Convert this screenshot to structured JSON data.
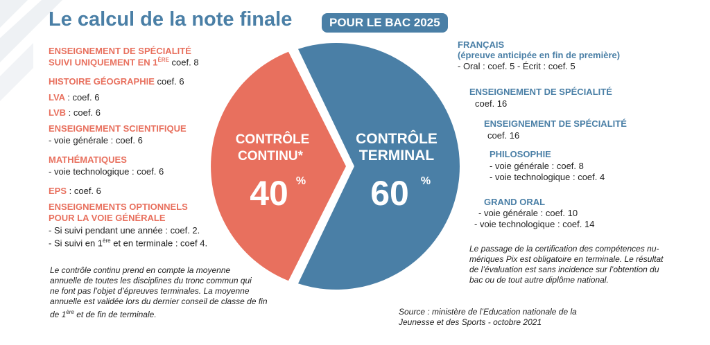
{
  "header": {
    "title": "Le calcul de la note finale",
    "badge": "POUR LE BAC 2025"
  },
  "colors": {
    "controle_continu": "#e8705e",
    "controle_terminal": "#4a7fa6"
  },
  "chart_data": {
    "type": "pie",
    "slices": [
      {
        "label_line1": "CONTRÔLE",
        "label_line2": "CONTINU*",
        "value": 40,
        "value_label": "40",
        "unit": "%",
        "color": "#e8705e"
      },
      {
        "label_line1": "CONTRÔLE",
        "label_line2": "TERMINAL",
        "value": 60,
        "value_label": "60",
        "unit": "%",
        "color": "#4a7fa6"
      }
    ]
  },
  "left": {
    "specialite_l1": "ENSEIGNEMENT DE SPÉCIALITÉ",
    "specialite_l2": "SUIVI UNIQUEMENT EN 1",
    "specialite_sup": "ÈRE",
    "specialite_coef": "coef. 8",
    "histgeo": "HISTOIRE GÉOGRAPHIE",
    "histgeo_coef": "coef. 6",
    "lva": "LVA",
    "lva_coef": ": coef. 6",
    "lvb": "LVB",
    "lvb_coef": ": coef. 6",
    "sci": "ENSEIGNEMENT SCIENTIFIQUE",
    "sci_detail": "- voie générale : coef. 6",
    "math": "MATHÉMATIQUES",
    "math_detail": "- voie technologique : coef. 6",
    "eps": "EPS",
    "eps_coef": ": coef. 6",
    "opt_l1": "ENSEIGNEMENTS OPTIONNELS",
    "opt_l2": "POUR LA VOIE GÉNÉRALE",
    "opt_d1": "- Si suivi pendant une année : coef. 2.",
    "opt_d2a": "- Si suivi en 1",
    "opt_d2sup": "ère",
    "opt_d2b": " et en terminale : coef 4.",
    "note_l1": "Le contrôle continu prend en compte la moyenne",
    "note_l2": "annuelle de toutes les disciplines du tronc commun qui",
    "note_l3": "ne font pas l’objet d’épreuves terminales. La moyenne",
    "note_l4": "annuelle est validée lors du dernier conseil de classe de fin",
    "note_l5a": "de 1",
    "note_l5sup": "ère",
    "note_l5b": " et de fin de terminale."
  },
  "right": {
    "fr_title": "FRANÇAIS",
    "fr_sub": "(épreuve anticipée en fin de première)",
    "fr_detail": "- Oral : coef. 5 - Écrit : coef. 5",
    "spe1_title": "ENSEIGNEMENT DE SPÉCIALITÉ",
    "spe1_coef": "coef. 16",
    "spe2_title": "ENSEIGNEMENT DE SPÉCIALITÉ",
    "spe2_coef": "coef. 16",
    "philo_title": "PHILOSOPHIE",
    "philo_d1": "- voie générale : coef. 8",
    "philo_d2": "- voie technologique : coef. 4",
    "go_title": "GRAND ORAL",
    "go_d1": "- voie générale : coef. 10",
    "go_d2": "- voie technologique : coef. 14",
    "pix_l1": "Le passage de la certification des compétences nu-",
    "pix_l2": "mériques Pix est obligatoire en terminale. Le résultat",
    "pix_l3": "de l’évaluation est sans incidence sur l’obtention du",
    "pix_l4": "bac ou de tout autre diplôme national.",
    "source_l1": "Source : ministère de l’Education nationale de la",
    "source_l2": "Jeunesse et des Sports - octobre 2021"
  }
}
